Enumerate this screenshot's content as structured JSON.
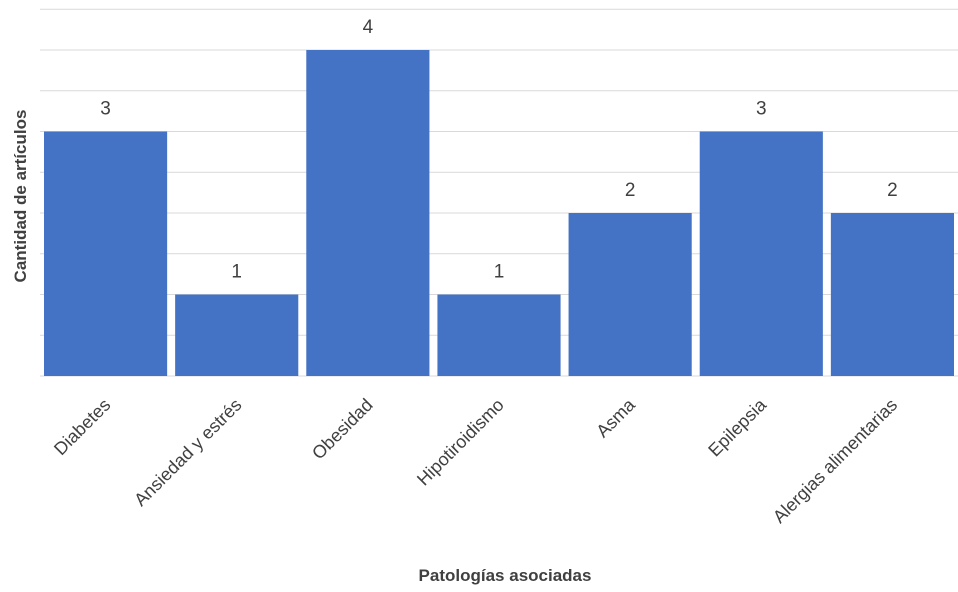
{
  "chart_data": {
    "type": "bar",
    "categories": [
      "Diabetes",
      "Ansiedad y estrés",
      "Obesidad",
      "Hipotiroidismo",
      "Asma",
      "Epilepsia",
      "Alergias alimentarias"
    ],
    "values": [
      3,
      1,
      4,
      1,
      2,
      3,
      2
    ],
    "xlabel": "Patologías asociadas",
    "ylabel": "Cantidad de artículos",
    "ylim": [
      0,
      4.5
    ],
    "grid": true,
    "colors": {
      "bar": "#4472c4",
      "grid": "#d9d9d9",
      "text": "#404040"
    }
  }
}
